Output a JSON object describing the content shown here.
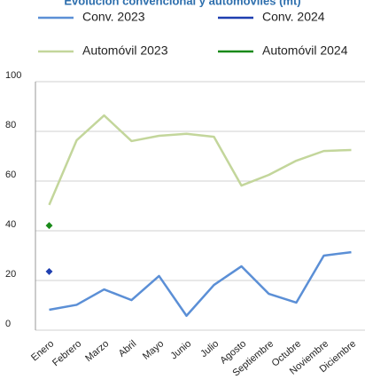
{
  "chart_data": {
    "type": "line",
    "title": "Evolución convencional y automóviles (mt)",
    "categories": [
      "Enero",
      "Febrero",
      "Marzo",
      "Abril",
      "Mayo",
      "Junio",
      "Julio",
      "Agosto",
      "Septiembre",
      "Octubre",
      "Noviembre",
      "Diciembre"
    ],
    "series": [
      {
        "name": "Conv. 2023",
        "color": "#5b8fd6",
        "values": [
          8.2,
          10.2,
          16.4,
          12.1,
          21.8,
          5.8,
          18.2,
          25.7,
          14.6,
          11.1,
          30.0,
          31.4
        ]
      },
      {
        "name": "Conv. 2024",
        "color": "#1f3fb0",
        "values": [
          23.6,
          null,
          null,
          null,
          null,
          null,
          null,
          null,
          null,
          null,
          null,
          null
        ]
      },
      {
        "name": "Automóvil 2023",
        "color": "#c3d69b",
        "values": [
          50.4,
          76.4,
          86.4,
          76.1,
          78.2,
          79.0,
          77.8,
          58.2,
          62.5,
          68.2,
          72.1,
          72.5
        ]
      },
      {
        "name": "Automóvil 2024",
        "color": "#1a8a1a",
        "values": [
          42.1,
          null,
          null,
          null,
          null,
          null,
          null,
          null,
          null,
          null,
          null,
          null
        ]
      }
    ],
    "ylim": [
      0,
      100
    ],
    "yticks": [
      0,
      20,
      40,
      60,
      80,
      100
    ],
    "grid": true
  }
}
